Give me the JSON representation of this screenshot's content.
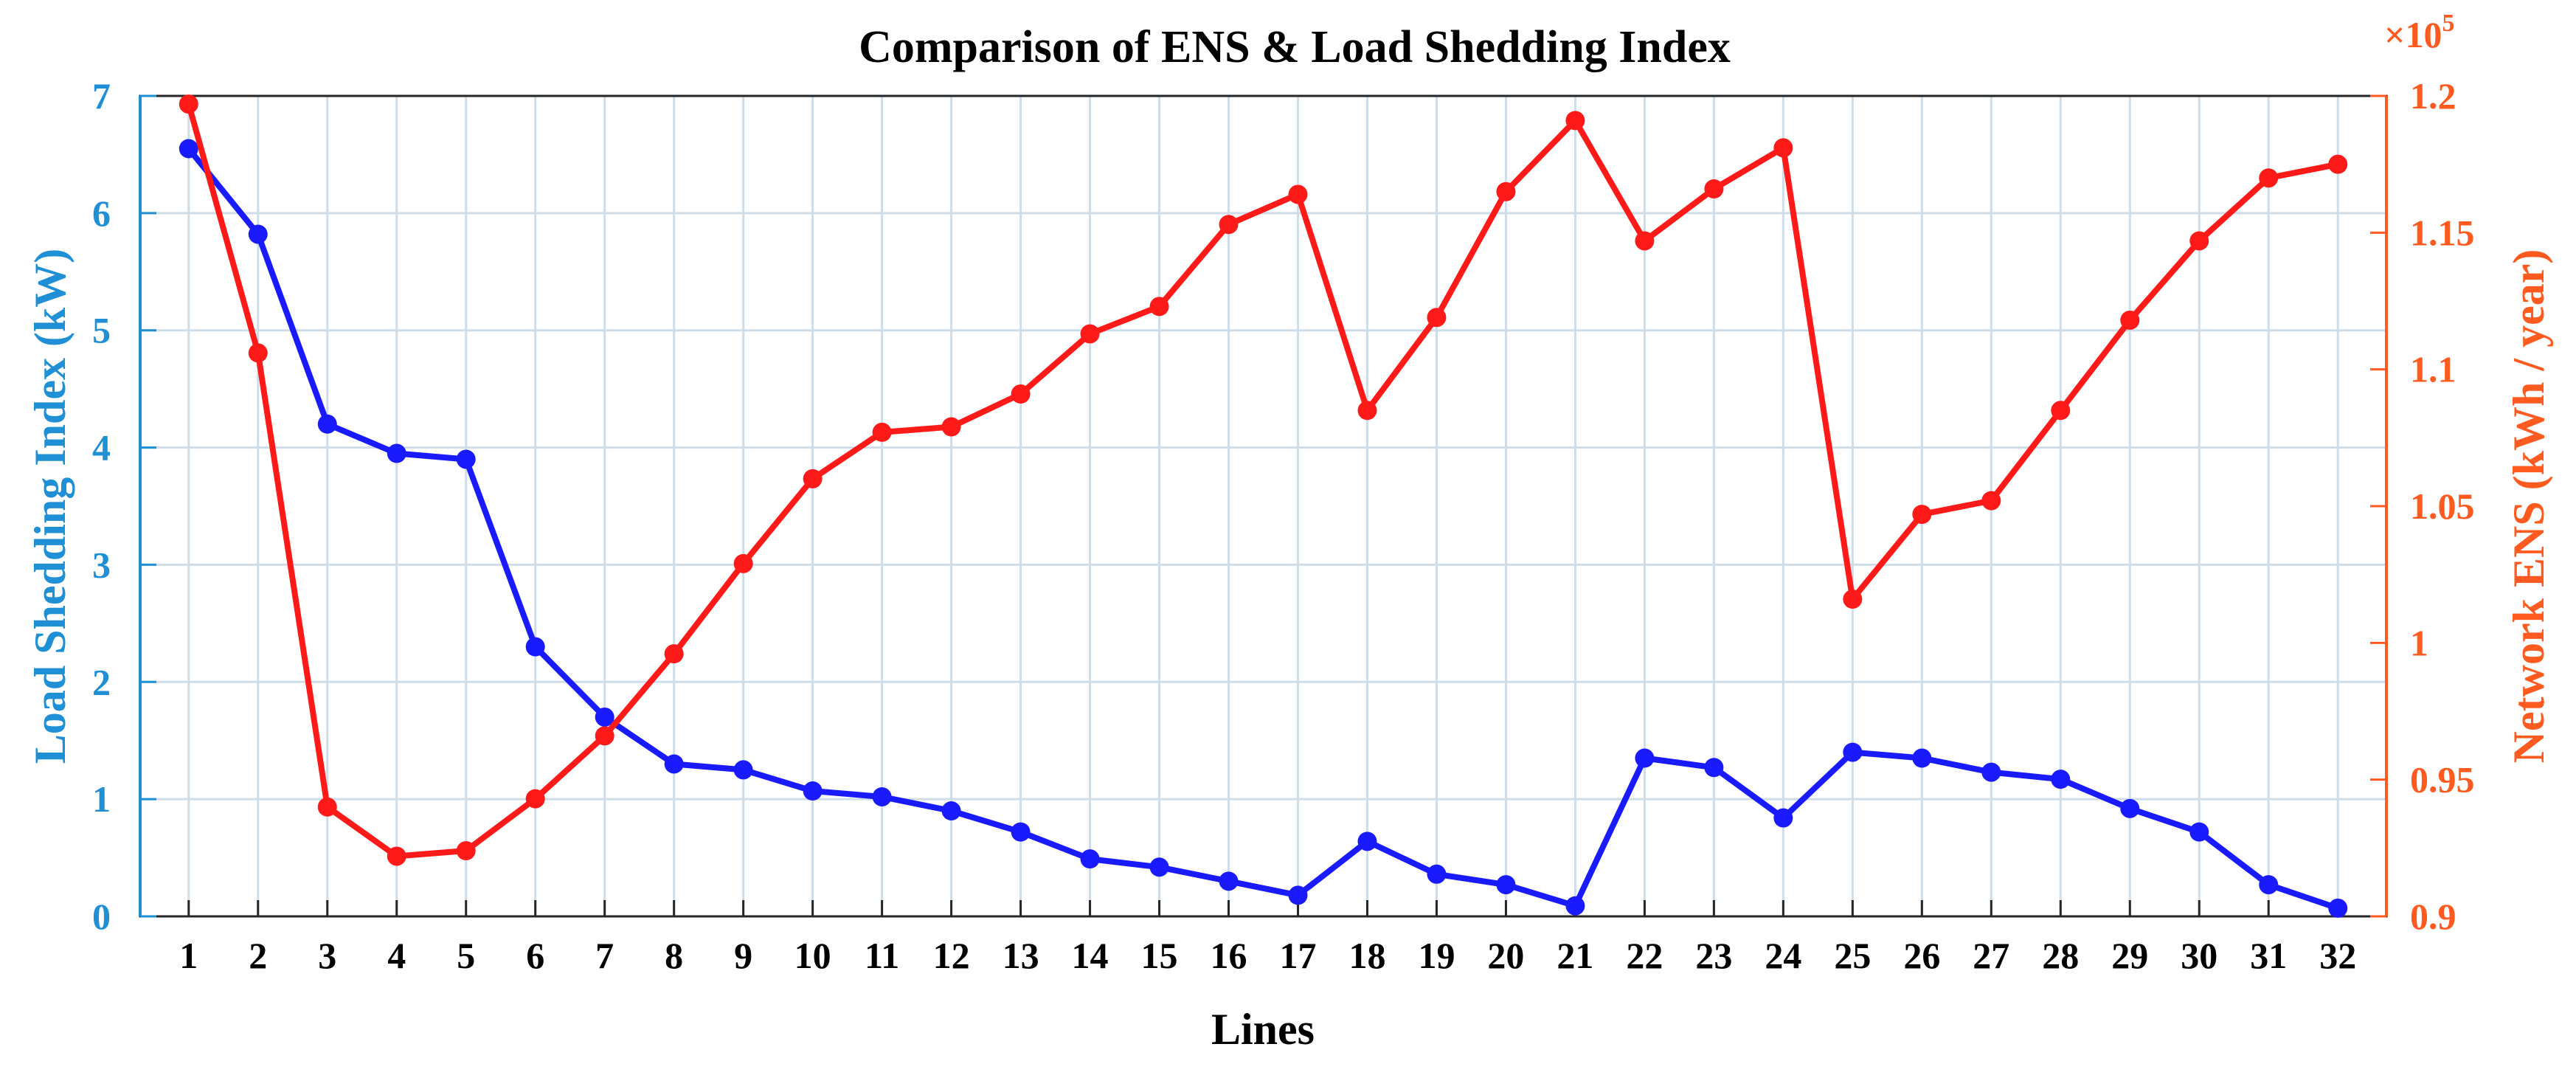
{
  "colors": {
    "left_axis": "#1f8fd6",
    "right_axis": "#ff5a1f",
    "series_left": "#1a1aff",
    "series_right": "#ff1a1a",
    "grid": "#cfdde8",
    "axis_box": "#262626"
  },
  "chart_data": {
    "type": "line",
    "title": "Comparison of ENS & Load Shedding Index",
    "xlabel": "Lines",
    "ylabel_left": "Load Shedding Index (kW)",
    "ylabel_right": "Network ENS (kWh / year)",
    "right_exponent_base": "×10",
    "right_exponent_power": "5",
    "x": [
      1,
      2,
      3,
      4,
      5,
      6,
      7,
      8,
      9,
      10,
      11,
      12,
      13,
      14,
      15,
      16,
      17,
      18,
      19,
      20,
      21,
      22,
      23,
      24,
      25,
      26,
      27,
      28,
      29,
      30,
      31,
      32
    ],
    "xlim": [
      0.3,
      32.7
    ],
    "ylim_left": [
      0,
      7
    ],
    "ylim_right": [
      0.9,
      1.2
    ],
    "left_ticks": [
      0,
      1,
      2,
      3,
      4,
      5,
      6,
      7
    ],
    "right_ticks": [
      0.9,
      0.95,
      1.0,
      1.05,
      1.1,
      1.15,
      1.2
    ],
    "right_tick_labels": [
      "0.9",
      "0.95",
      "1",
      "1.05",
      "1.1",
      "1.15",
      "1.2"
    ],
    "grid": true,
    "series": [
      {
        "name": "Load Shedding Index",
        "axis": "left",
        "values": [
          6.55,
          5.82,
          4.2,
          3.95,
          3.9,
          2.3,
          1.7,
          1.3,
          1.25,
          1.07,
          1.02,
          0.9,
          0.72,
          0.49,
          0.42,
          0.3,
          0.18,
          0.64,
          0.36,
          0.27,
          0.09,
          1.35,
          1.27,
          0.84,
          1.4,
          1.35,
          1.23,
          1.17,
          0.92,
          0.72,
          0.27,
          0.07
        ]
      },
      {
        "name": "Network ENS",
        "axis": "right",
        "values": [
          1.197,
          1.106,
          0.94,
          0.922,
          0.924,
          0.943,
          0.966,
          0.996,
          1.029,
          1.06,
          1.077,
          1.079,
          1.091,
          1.113,
          1.123,
          1.153,
          1.164,
          1.085,
          1.119,
          1.165,
          1.191,
          1.147,
          1.166,
          1.181,
          1.016,
          1.047,
          1.052,
          1.085,
          1.118,
          1.147,
          1.17,
          1.175
        ]
      }
    ]
  }
}
